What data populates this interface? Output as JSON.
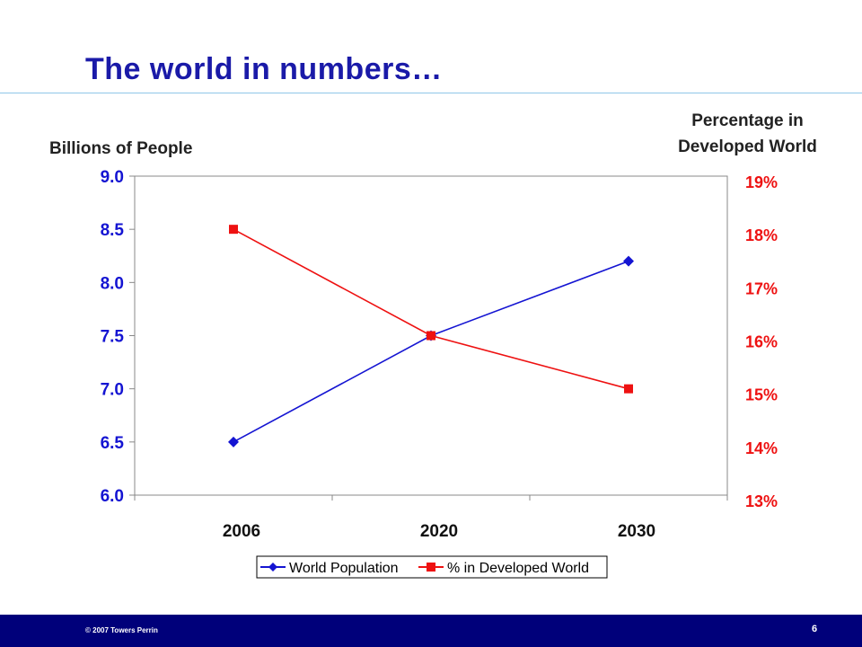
{
  "slide": {
    "title": "The world in numbers…",
    "copyright": "© 2007 Towers Perrin",
    "page_number": "6"
  },
  "colors": {
    "title": "#1a1aa8",
    "series_population": "#1414d2",
    "series_developed": "#ee1111",
    "footer": "#00007a",
    "rule": "#8fc6e8"
  },
  "chart_data": {
    "type": "line",
    "categories": [
      "2006",
      "2020",
      "2030"
    ],
    "ylabel": "Billions of People",
    "ylabel_right": "Percentage in Developed World",
    "ylim": [
      6.0,
      9.0
    ],
    "yticks": [
      "6.0",
      "6.5",
      "7.0",
      "7.5",
      "8.0",
      "8.5",
      "9.0"
    ],
    "ylim_right": [
      13,
      19
    ],
    "yticks_right": [
      "13%",
      "14%",
      "15%",
      "16%",
      "17%",
      "18%",
      "19%"
    ],
    "series": [
      {
        "name": "World Population",
        "axis": "left",
        "marker": "diamond",
        "values": [
          6.5,
          7.5,
          8.2
        ]
      },
      {
        "name": "% in Developed World",
        "axis": "right",
        "marker": "square",
        "values": [
          18,
          16,
          15
        ]
      }
    ],
    "legend": "bottom",
    "grid": false
  }
}
